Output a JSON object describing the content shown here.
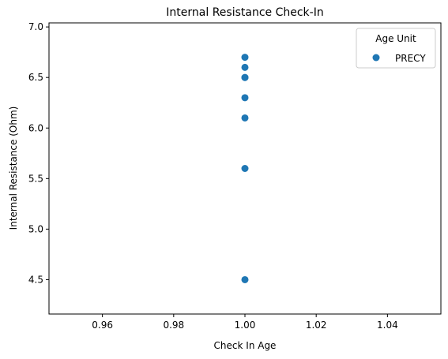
{
  "chart_data": {
    "type": "scatter",
    "title": "Internal Resistance Check-In",
    "xlabel": "Check In Age",
    "ylabel": "Internal Resistance (Ohm)",
    "xlim": [
      0.945,
      1.055
    ],
    "ylim": [
      4.16,
      7.04
    ],
    "xticks": [
      0.96,
      0.98,
      1.0,
      1.02,
      1.04
    ],
    "xtick_labels": [
      "0.96",
      "0.98",
      "1.00",
      "1.02",
      "1.04"
    ],
    "yticks": [
      4.5,
      5.0,
      5.5,
      6.0,
      6.5,
      7.0
    ],
    "ytick_labels": [
      "4.5",
      "5.0",
      "5.5",
      "6.0",
      "6.5",
      "7.0"
    ],
    "grid": false,
    "legend": {
      "title": "Age Unit",
      "placement": "top-right"
    },
    "series": [
      {
        "name": "PRECY",
        "color": "#1f77b4",
        "points": [
          {
            "x": 1.0,
            "y": 6.7
          },
          {
            "x": 1.0,
            "y": 6.6
          },
          {
            "x": 1.0,
            "y": 6.5
          },
          {
            "x": 1.0,
            "y": 6.5
          },
          {
            "x": 1.0,
            "y": 6.3
          },
          {
            "x": 1.0,
            "y": 6.1
          },
          {
            "x": 1.0,
            "y": 5.6
          },
          {
            "x": 1.0,
            "y": 4.5
          }
        ]
      }
    ]
  }
}
